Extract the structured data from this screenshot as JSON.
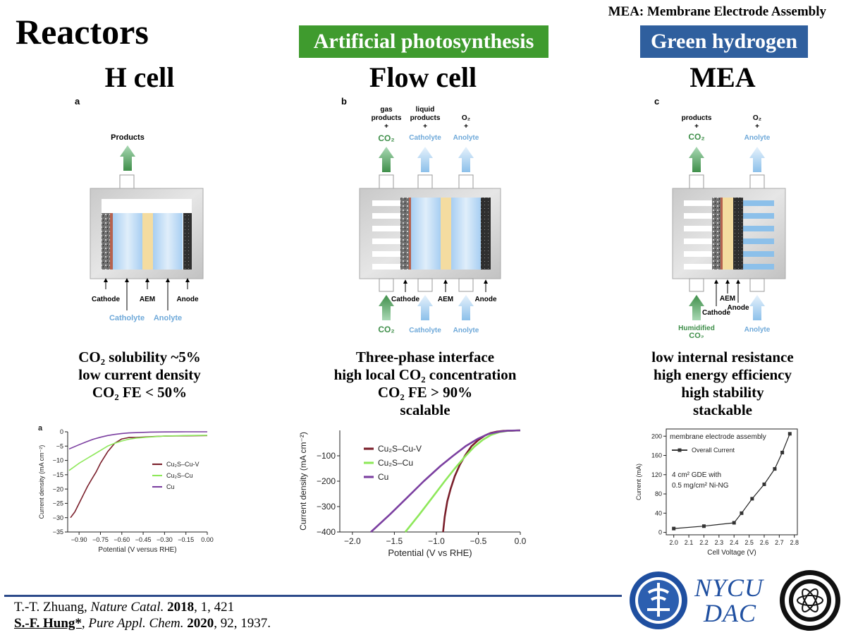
{
  "header": {
    "note": "MEA: Membrane Electrode Assembly",
    "title": "Reactors",
    "badge_green": "Artificial photosynthesis",
    "badge_blue": "Green hydrogen"
  },
  "reactors": [
    {
      "name": "H cell",
      "summary": [
        "CO₂ solubility ~5%",
        "low current density",
        "CO₂ FE < 50%"
      ]
    },
    {
      "name": "Flow cell",
      "summary": [
        "Three-phase interface",
        "high local CO₂ concentration",
        "CO₂ FE > 90%",
        "scalable"
      ]
    },
    {
      "name": "MEA",
      "summary": [
        "low internal resistance",
        "high energy efficiency",
        "high stability",
        "stackable"
      ]
    }
  ],
  "diagrams": {
    "a": {
      "panel": "a",
      "products": "Products",
      "cathode": "Cathode",
      "aem": "AEM",
      "anode": "Anode",
      "catholyte": "Catholyte",
      "anolyte": "Anolyte"
    },
    "b": {
      "panel": "b",
      "gas_products": [
        "gas",
        "products",
        "+"
      ],
      "co2_out": "CO₂",
      "liquid_products": [
        "liquid",
        "products",
        "+"
      ],
      "catholyte_out": "Catholyte",
      "o2": [
        "O₂",
        "+"
      ],
      "anolyte_out": "Anolyte",
      "cathode": "Cathode",
      "aem": "AEM",
      "anode": "Anode",
      "co2_in": "CO₂",
      "catholyte_in": "Catholyte",
      "anolyte_in": "Anolyte"
    },
    "c": {
      "panel": "c",
      "products": [
        "products",
        "+"
      ],
      "co2_out": "CO₂",
      "o2": [
        "O₂",
        "+"
      ],
      "anolyte_out": "Anolyte",
      "aem": "AEM",
      "cathode": "Cathode",
      "anode": "Anode",
      "humidified": "Humidified",
      "co2_in": "CO₂",
      "anolyte_in": "Anolyte"
    }
  },
  "chart_data": [
    {
      "type": "line",
      "panel_label": "a",
      "xlabel": "Potential (V versus RHE)",
      "ylabel": "Current density (mA cm⁻²)",
      "xlim": [
        -0.98,
        0.0
      ],
      "ylim": [
        -35,
        0
      ],
      "xticks": [
        -0.9,
        -0.75,
        -0.6,
        -0.45,
        -0.3,
        -0.15,
        0.0
      ],
      "xtick_labels": [
        "−0.90",
        "−0.75",
        "−0.60",
        "−0.45",
        "−0.30",
        "−0.15",
        "0.00"
      ],
      "yticks": [
        0,
        -5,
        -10,
        -15,
        -20,
        -25,
        -30,
        -35
      ],
      "ytick_labels": [
        "0",
        "−5",
        "−10",
        "−15",
        "−20",
        "−25",
        "−30",
        "−35"
      ],
      "legend_position": "center-right",
      "series": [
        {
          "name": "Cu₂S–Cu-V",
          "color": "#7a1f2b",
          "x": [
            -0.96,
            -0.93,
            -0.9,
            -0.87,
            -0.84,
            -0.81,
            -0.78,
            -0.75,
            -0.7,
            -0.65,
            -0.6,
            -0.55,
            -0.5,
            -0.4,
            -0.3,
            -0.15,
            0.0
          ],
          "y": [
            -30,
            -28,
            -25,
            -22,
            -19,
            -16.5,
            -14,
            -11,
            -7,
            -4,
            -2.5,
            -2,
            -2,
            -1.7,
            -1.5,
            -1.4,
            -1.3
          ]
        },
        {
          "name": "Cu₂S–Cu",
          "color": "#8ee85a",
          "x": [
            -0.97,
            -0.9,
            -0.85,
            -0.8,
            -0.75,
            -0.7,
            -0.65,
            -0.6,
            -0.55,
            -0.5,
            -0.4,
            -0.3,
            -0.15,
            0.0
          ],
          "y": [
            -13.5,
            -11,
            -9.5,
            -8,
            -6.5,
            -5,
            -4,
            -3.2,
            -2.6,
            -2.2,
            -1.8,
            -1.5,
            -1.3,
            -1.2
          ]
        },
        {
          "name": "Cu",
          "color": "#7b3fa0",
          "x": [
            -0.97,
            -0.9,
            -0.85,
            -0.8,
            -0.75,
            -0.7,
            -0.65,
            -0.6,
            -0.55,
            -0.5,
            -0.45,
            -0.4,
            -0.3,
            -0.15,
            0.0
          ],
          "y": [
            -6,
            -4.5,
            -3.5,
            -2.6,
            -1.9,
            -1.3,
            -0.9,
            -0.6,
            -0.4,
            -0.3,
            -0.2,
            -0.1,
            -0.05,
            0,
            0
          ]
        }
      ]
    },
    {
      "type": "line",
      "xlabel": "Potential (V vs RHE)",
      "ylabel": "Current density (mA cm⁻²)",
      "xlim": [
        -2.15,
        0.0
      ],
      "ylim": [
        -400,
        0
      ],
      "xticks": [
        -2.0,
        -1.5,
        -1.0,
        -0.5,
        0.0
      ],
      "xtick_labels": [
        "−2.0",
        "−1.5",
        "−1.0",
        "−0.5",
        "0.0"
      ],
      "yticks": [
        -100,
        -200,
        -300,
        -400
      ],
      "ytick_labels": [
        "−100",
        "−200",
        "−300",
        "−400"
      ],
      "legend_position": "top-left",
      "series": [
        {
          "name": "Cu₂S–Cu-V",
          "color": "#7a1f2b",
          "x": [
            -0.92,
            -0.9,
            -0.87,
            -0.83,
            -0.78,
            -0.72,
            -0.65,
            -0.58,
            -0.5,
            -0.42,
            -0.35,
            -0.28,
            -0.2,
            -0.1,
            0.0
          ],
          "y": [
            -400,
            -340,
            -280,
            -230,
            -180,
            -135,
            -95,
            -62,
            -38,
            -20,
            -10,
            -5,
            -2,
            -1,
            0
          ]
        },
        {
          "name": "Cu₂S–Cu",
          "color": "#8ee85a",
          "x": [
            -1.37,
            -1.2,
            -1.05,
            -0.9,
            -0.78,
            -0.65,
            -0.55,
            -0.45,
            -0.35,
            -0.25,
            -0.15,
            0.0
          ],
          "y": [
            -400,
            -330,
            -265,
            -200,
            -150,
            -100,
            -65,
            -38,
            -18,
            -7,
            -2,
            0
          ]
        },
        {
          "name": "Cu",
          "color": "#7b3fa0",
          "x": [
            -1.78,
            -1.55,
            -1.35,
            -1.15,
            -0.95,
            -0.8,
            -0.65,
            -0.5,
            -0.38,
            -0.25,
            -0.15,
            0.0
          ],
          "y": [
            -400,
            -330,
            -265,
            -200,
            -140,
            -100,
            -62,
            -32,
            -14,
            -5,
            -1,
            0
          ]
        }
      ]
    },
    {
      "type": "line",
      "title": "membrane electrode assembly",
      "xlabel": "Cell Voltage (V)",
      "ylabel": "Current (mA)",
      "xlim": [
        1.95,
        2.82
      ],
      "ylim": [
        -5,
        215
      ],
      "xticks": [
        2.0,
        2.1,
        2.2,
        2.3,
        2.4,
        2.5,
        2.6,
        2.7,
        2.8
      ],
      "xtick_labels": [
        "2.0",
        "2.1",
        "2.2",
        "2.3",
        "2.4",
        "2.5",
        "2.6",
        "2.7",
        "2.8"
      ],
      "yticks": [
        0,
        40,
        80,
        120,
        160,
        200
      ],
      "ytick_labels": [
        "0",
        "40",
        "80",
        "120",
        "160",
        "200"
      ],
      "legend_position": "top-left",
      "annotation": [
        "4 cm² GDE with",
        "0.5 mg/cm² Ni-NG"
      ],
      "series": [
        {
          "name": "Overall Current",
          "color": "#222222",
          "x": [
            2.0,
            2.2,
            2.4,
            2.45,
            2.52,
            2.6,
            2.67,
            2.72,
            2.77
          ],
          "y": [
            8,
            13,
            20,
            40,
            70,
            100,
            132,
            166,
            205
          ]
        }
      ]
    }
  ],
  "references": [
    {
      "author": "T.-T. Zhuang, ",
      "journal": "Nature Catal.",
      "year": " 2018",
      "rest": ", 1, 421"
    },
    {
      "author": "S.-F. Hung*",
      "journal": ", Pure Appl. Chem.",
      "year": " 2020",
      "rest": ", 92, 1937."
    }
  ],
  "logos": {
    "nycu_line1": "NYCU",
    "nycu_line2": "DAC"
  },
  "colors": {
    "green_badge": "#3f9b2e",
    "blue_badge": "#2f5f9e",
    "co2_green": "#3f8f4a",
    "electrolyte_blue": "#5aa0dc"
  }
}
